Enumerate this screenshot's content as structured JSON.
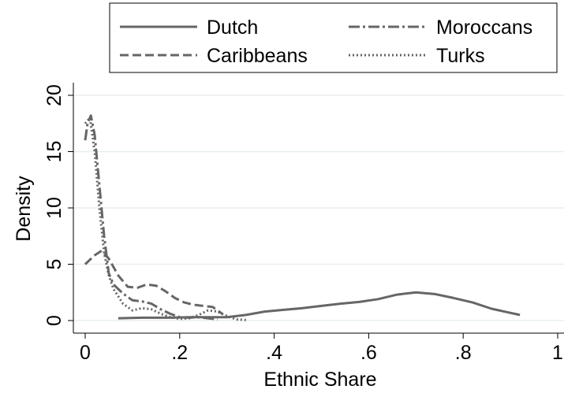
{
  "chart_data": {
    "type": "line",
    "title": "",
    "xlabel": "Ethnic Share",
    "ylabel": "Density",
    "xlim": [
      0,
      1
    ],
    "ylim": [
      0,
      20
    ],
    "x_ticks": [
      {
        "value": 0,
        "label": "0"
      },
      {
        "value": 0.2,
        "label": ".2"
      },
      {
        "value": 0.4,
        "label": ".4"
      },
      {
        "value": 0.6,
        "label": ".6"
      },
      {
        "value": 0.8,
        "label": ".8"
      },
      {
        "value": 1,
        "label": "1"
      }
    ],
    "y_ticks": [
      {
        "value": 0,
        "label": "0"
      },
      {
        "value": 5,
        "label": "5"
      },
      {
        "value": 10,
        "label": "10"
      },
      {
        "value": 15,
        "label": "15"
      },
      {
        "value": 20,
        "label": "20"
      }
    ],
    "grid": "horizontal",
    "legend_position": "top",
    "series": [
      {
        "name": "Dutch",
        "style": "solid",
        "color": "#666666",
        "points": [
          [
            0.07,
            0.2
          ],
          [
            0.12,
            0.25
          ],
          [
            0.18,
            0.25
          ],
          [
            0.22,
            0.3
          ],
          [
            0.26,
            0.3
          ],
          [
            0.3,
            0.3
          ],
          [
            0.34,
            0.5
          ],
          [
            0.38,
            0.8
          ],
          [
            0.42,
            0.95
          ],
          [
            0.46,
            1.1
          ],
          [
            0.5,
            1.3
          ],
          [
            0.54,
            1.5
          ],
          [
            0.58,
            1.65
          ],
          [
            0.62,
            1.9
          ],
          [
            0.66,
            2.3
          ],
          [
            0.7,
            2.5
          ],
          [
            0.74,
            2.35
          ],
          [
            0.78,
            2.0
          ],
          [
            0.82,
            1.6
          ],
          [
            0.86,
            1.05
          ],
          [
            0.92,
            0.5
          ]
        ]
      },
      {
        "name": "Moroccans",
        "style": "dashdot",
        "color": "#666666",
        "points": [
          [
            0.0,
            16.0
          ],
          [
            0.005,
            17.5
          ],
          [
            0.012,
            18.2
          ],
          [
            0.02,
            16.5
          ],
          [
            0.03,
            12.0
          ],
          [
            0.04,
            7.5
          ],
          [
            0.05,
            4.2
          ],
          [
            0.06,
            3.2
          ],
          [
            0.08,
            2.4
          ],
          [
            0.1,
            1.8
          ],
          [
            0.12,
            1.7
          ],
          [
            0.14,
            1.5
          ],
          [
            0.16,
            1.0
          ],
          [
            0.18,
            0.6
          ],
          [
            0.2,
            0.3
          ],
          [
            0.22,
            0.25
          ],
          [
            0.24,
            0.3
          ],
          [
            0.26,
            0.2
          ],
          [
            0.28,
            0.1
          ]
        ]
      },
      {
        "name": "Caribbeans",
        "style": "dashed",
        "color": "#666666",
        "points": [
          [
            0.0,
            5.0
          ],
          [
            0.02,
            5.8
          ],
          [
            0.035,
            6.2
          ],
          [
            0.05,
            5.5
          ],
          [
            0.07,
            4.0
          ],
          [
            0.09,
            3.0
          ],
          [
            0.11,
            2.9
          ],
          [
            0.13,
            3.2
          ],
          [
            0.15,
            3.1
          ],
          [
            0.17,
            2.6
          ],
          [
            0.19,
            2.0
          ],
          [
            0.21,
            1.6
          ],
          [
            0.23,
            1.4
          ],
          [
            0.25,
            1.3
          ],
          [
            0.27,
            1.2
          ],
          [
            0.29,
            0.6
          ]
        ]
      },
      {
        "name": "Turks",
        "style": "dotted",
        "color": "#666666",
        "points": [
          [
            0.0,
            17.5
          ],
          [
            0.01,
            18.0
          ],
          [
            0.02,
            15.0
          ],
          [
            0.03,
            10.0
          ],
          [
            0.04,
            6.0
          ],
          [
            0.05,
            4.0
          ],
          [
            0.06,
            2.8
          ],
          [
            0.08,
            1.5
          ],
          [
            0.1,
            0.9
          ],
          [
            0.12,
            1.1
          ],
          [
            0.14,
            1.0
          ],
          [
            0.16,
            0.6
          ],
          [
            0.18,
            0.3
          ],
          [
            0.2,
            0.15
          ],
          [
            0.22,
            0.2
          ],
          [
            0.24,
            0.5
          ],
          [
            0.26,
            0.9
          ],
          [
            0.28,
            0.8
          ],
          [
            0.3,
            0.4
          ],
          [
            0.32,
            0.1
          ],
          [
            0.34,
            0.05
          ]
        ]
      }
    ]
  }
}
